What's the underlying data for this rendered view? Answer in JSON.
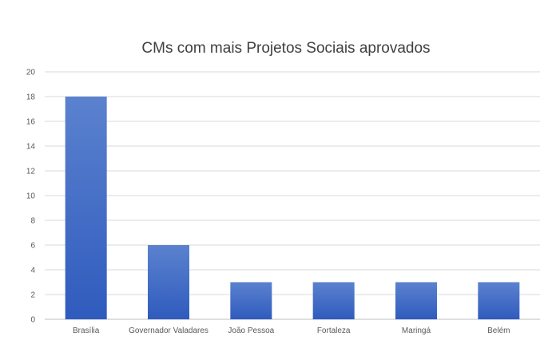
{
  "chart_data": {
    "type": "bar",
    "title": "CMs com mais Projetos Sociais aprovados",
    "categories": [
      "Brasília",
      "Governador Valadares",
      "João Pessoa",
      "Fortaleza",
      "Maringá",
      "Belém"
    ],
    "values": [
      18,
      6,
      3,
      3,
      3,
      3
    ],
    "xlabel": "",
    "ylabel": "",
    "ylim": [
      0,
      20
    ],
    "yticks": [
      0,
      2,
      4,
      6,
      8,
      10,
      12,
      14,
      16,
      18,
      20
    ],
    "grid": true,
    "legend": "none",
    "bar_color_top": "#5b82cf",
    "bar_color_bottom": "#2f5bbd"
  }
}
